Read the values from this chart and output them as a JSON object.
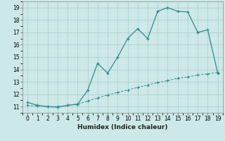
{
  "xlabel": "Humidex (Indice chaleur)",
  "x_values": [
    0,
    1,
    2,
    3,
    4,
    5,
    6,
    7,
    8,
    9,
    10,
    11,
    12,
    13,
    14,
    15,
    16,
    17,
    18,
    19
  ],
  "line1_y": [
    11.35,
    11.1,
    11.0,
    10.95,
    11.1,
    11.2,
    12.3,
    14.5,
    13.7,
    15.0,
    16.5,
    17.3,
    16.5,
    18.7,
    19.0,
    18.7,
    18.65,
    17.0,
    17.2,
    13.7
  ],
  "line2_y": [
    11.1,
    11.05,
    11.0,
    11.0,
    11.1,
    11.2,
    11.45,
    11.7,
    11.95,
    12.15,
    12.35,
    12.55,
    12.75,
    12.95,
    13.1,
    13.3,
    13.4,
    13.55,
    13.65,
    13.75
  ],
  "line_color": "#2e8b8b",
  "bg_color": "#cce8e8",
  "grid_major_color": "#b0d0d0",
  "grid_minor_color": "#d8ecec",
  "ylim": [
    10.5,
    19.5
  ],
  "xlim": [
    -0.5,
    19.5
  ],
  "yticks": [
    11,
    12,
    13,
    14,
    15,
    16,
    17,
    18,
    19
  ],
  "xticks": [
    0,
    1,
    2,
    3,
    4,
    5,
    6,
    7,
    8,
    9,
    10,
    11,
    12,
    13,
    14,
    15,
    16,
    17,
    18,
    19
  ],
  "tick_fontsize": 5.5,
  "xlabel_fontsize": 6.5
}
